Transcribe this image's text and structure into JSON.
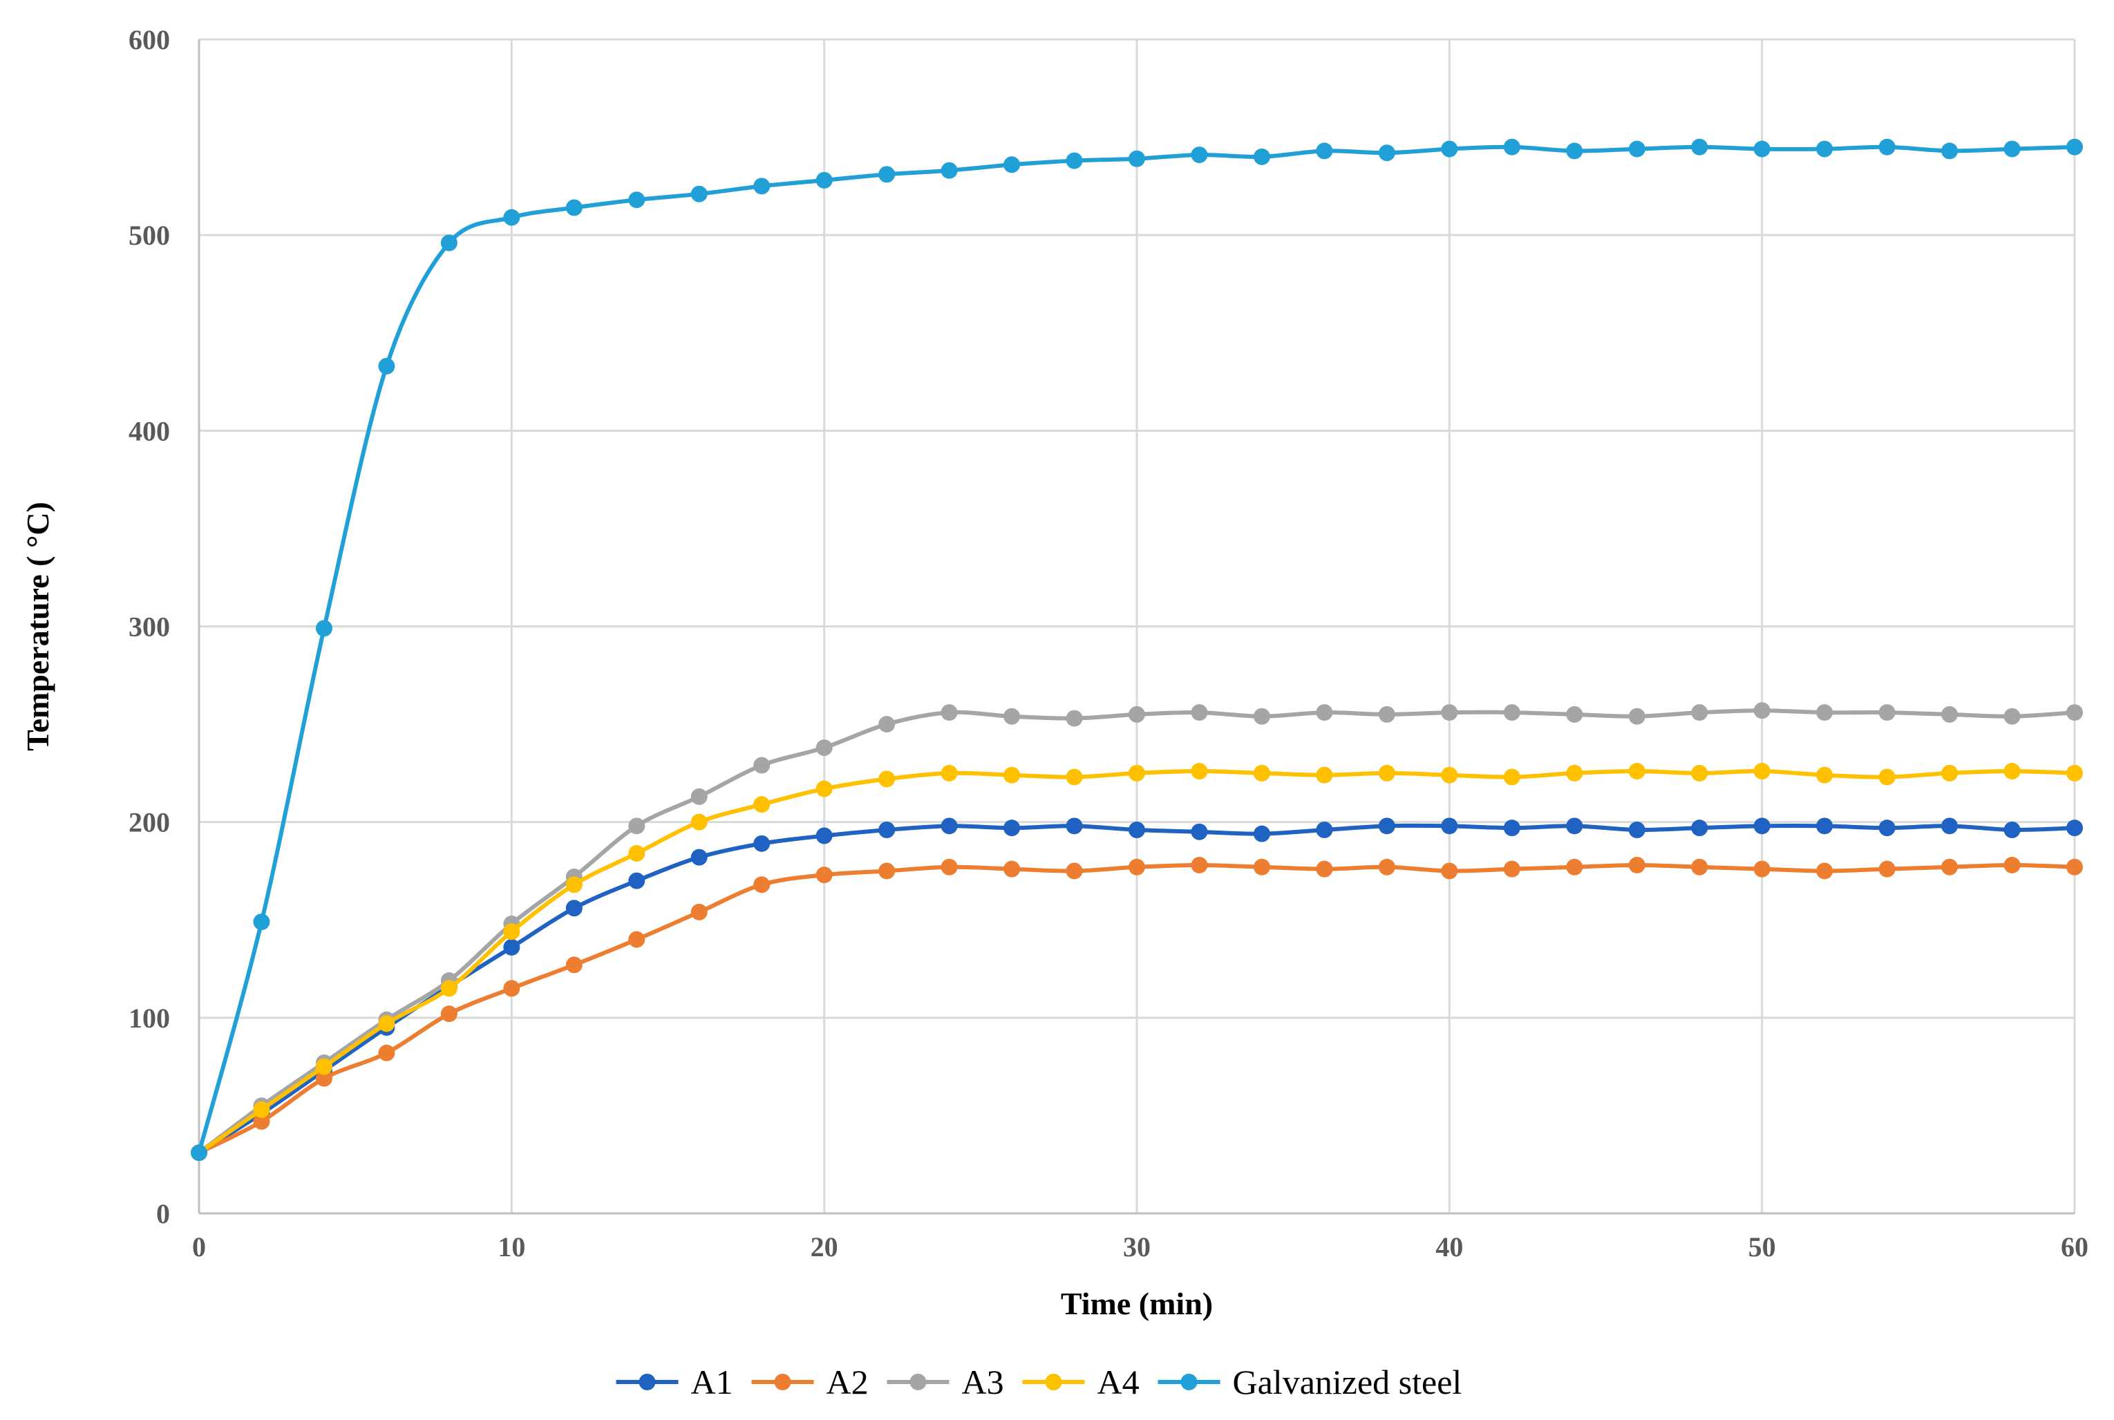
{
  "chart_data": {
    "type": "line",
    "title": "",
    "xlabel": "Time (min)",
    "ylabel": "Temperature ( °C)",
    "xlim": [
      0,
      60
    ],
    "ylim": [
      0,
      600
    ],
    "xticks": [
      0,
      10,
      20,
      30,
      40,
      50,
      60
    ],
    "yticks": [
      0,
      100,
      200,
      300,
      400,
      500,
      600
    ],
    "grid": true,
    "legend_position": "bottom",
    "x": [
      0,
      2,
      4,
      6,
      8,
      10,
      12,
      14,
      16,
      18,
      20,
      22,
      24,
      26,
      28,
      30,
      32,
      34,
      36,
      38,
      40,
      42,
      44,
      46,
      48,
      50,
      52,
      54,
      56,
      58,
      60
    ],
    "series": [
      {
        "name": "A1",
        "color": "#1f62c1",
        "values": [
          31,
          51,
          73,
          95,
          116,
          136,
          156,
          170,
          182,
          189,
          193,
          196,
          198,
          197,
          198,
          196,
          195,
          194,
          196,
          198,
          198,
          197,
          198,
          196,
          197,
          198,
          198,
          197,
          198,
          196,
          197
        ]
      },
      {
        "name": "A2",
        "color": "#ed7d31",
        "values": [
          31,
          47,
          69,
          82,
          102,
          115,
          127,
          140,
          154,
          168,
          173,
          175,
          177,
          176,
          175,
          177,
          178,
          177,
          176,
          177,
          175,
          176,
          177,
          178,
          177,
          176,
          175,
          176,
          177,
          178,
          177
        ]
      },
      {
        "name": "A3",
        "color": "#a5a5a5",
        "values": [
          31,
          55,
          77,
          99,
          119,
          148,
          172,
          198,
          213,
          229,
          238,
          250,
          256,
          254,
          253,
          255,
          256,
          254,
          256,
          255,
          256,
          256,
          255,
          254,
          256,
          257,
          256,
          256,
          255,
          254,
          256
        ]
      },
      {
        "name": "A4",
        "color": "#ffc000",
        "values": [
          31,
          53,
          75,
          97,
          115,
          144,
          168,
          184,
          200,
          209,
          217,
          222,
          225,
          224,
          223,
          225,
          226,
          225,
          224,
          225,
          224,
          223,
          225,
          226,
          225,
          226,
          224,
          223,
          225,
          226,
          225
        ]
      },
      {
        "name": "Galvanized steel",
        "color": "#21a0d8",
        "values": [
          31,
          149,
          299,
          433,
          496,
          509,
          514,
          518,
          521,
          525,
          528,
          531,
          533,
          536,
          538,
          539,
          541,
          540,
          543,
          542,
          544,
          545,
          543,
          544,
          545,
          544,
          544,
          545,
          543,
          544,
          545
        ]
      }
    ]
  }
}
